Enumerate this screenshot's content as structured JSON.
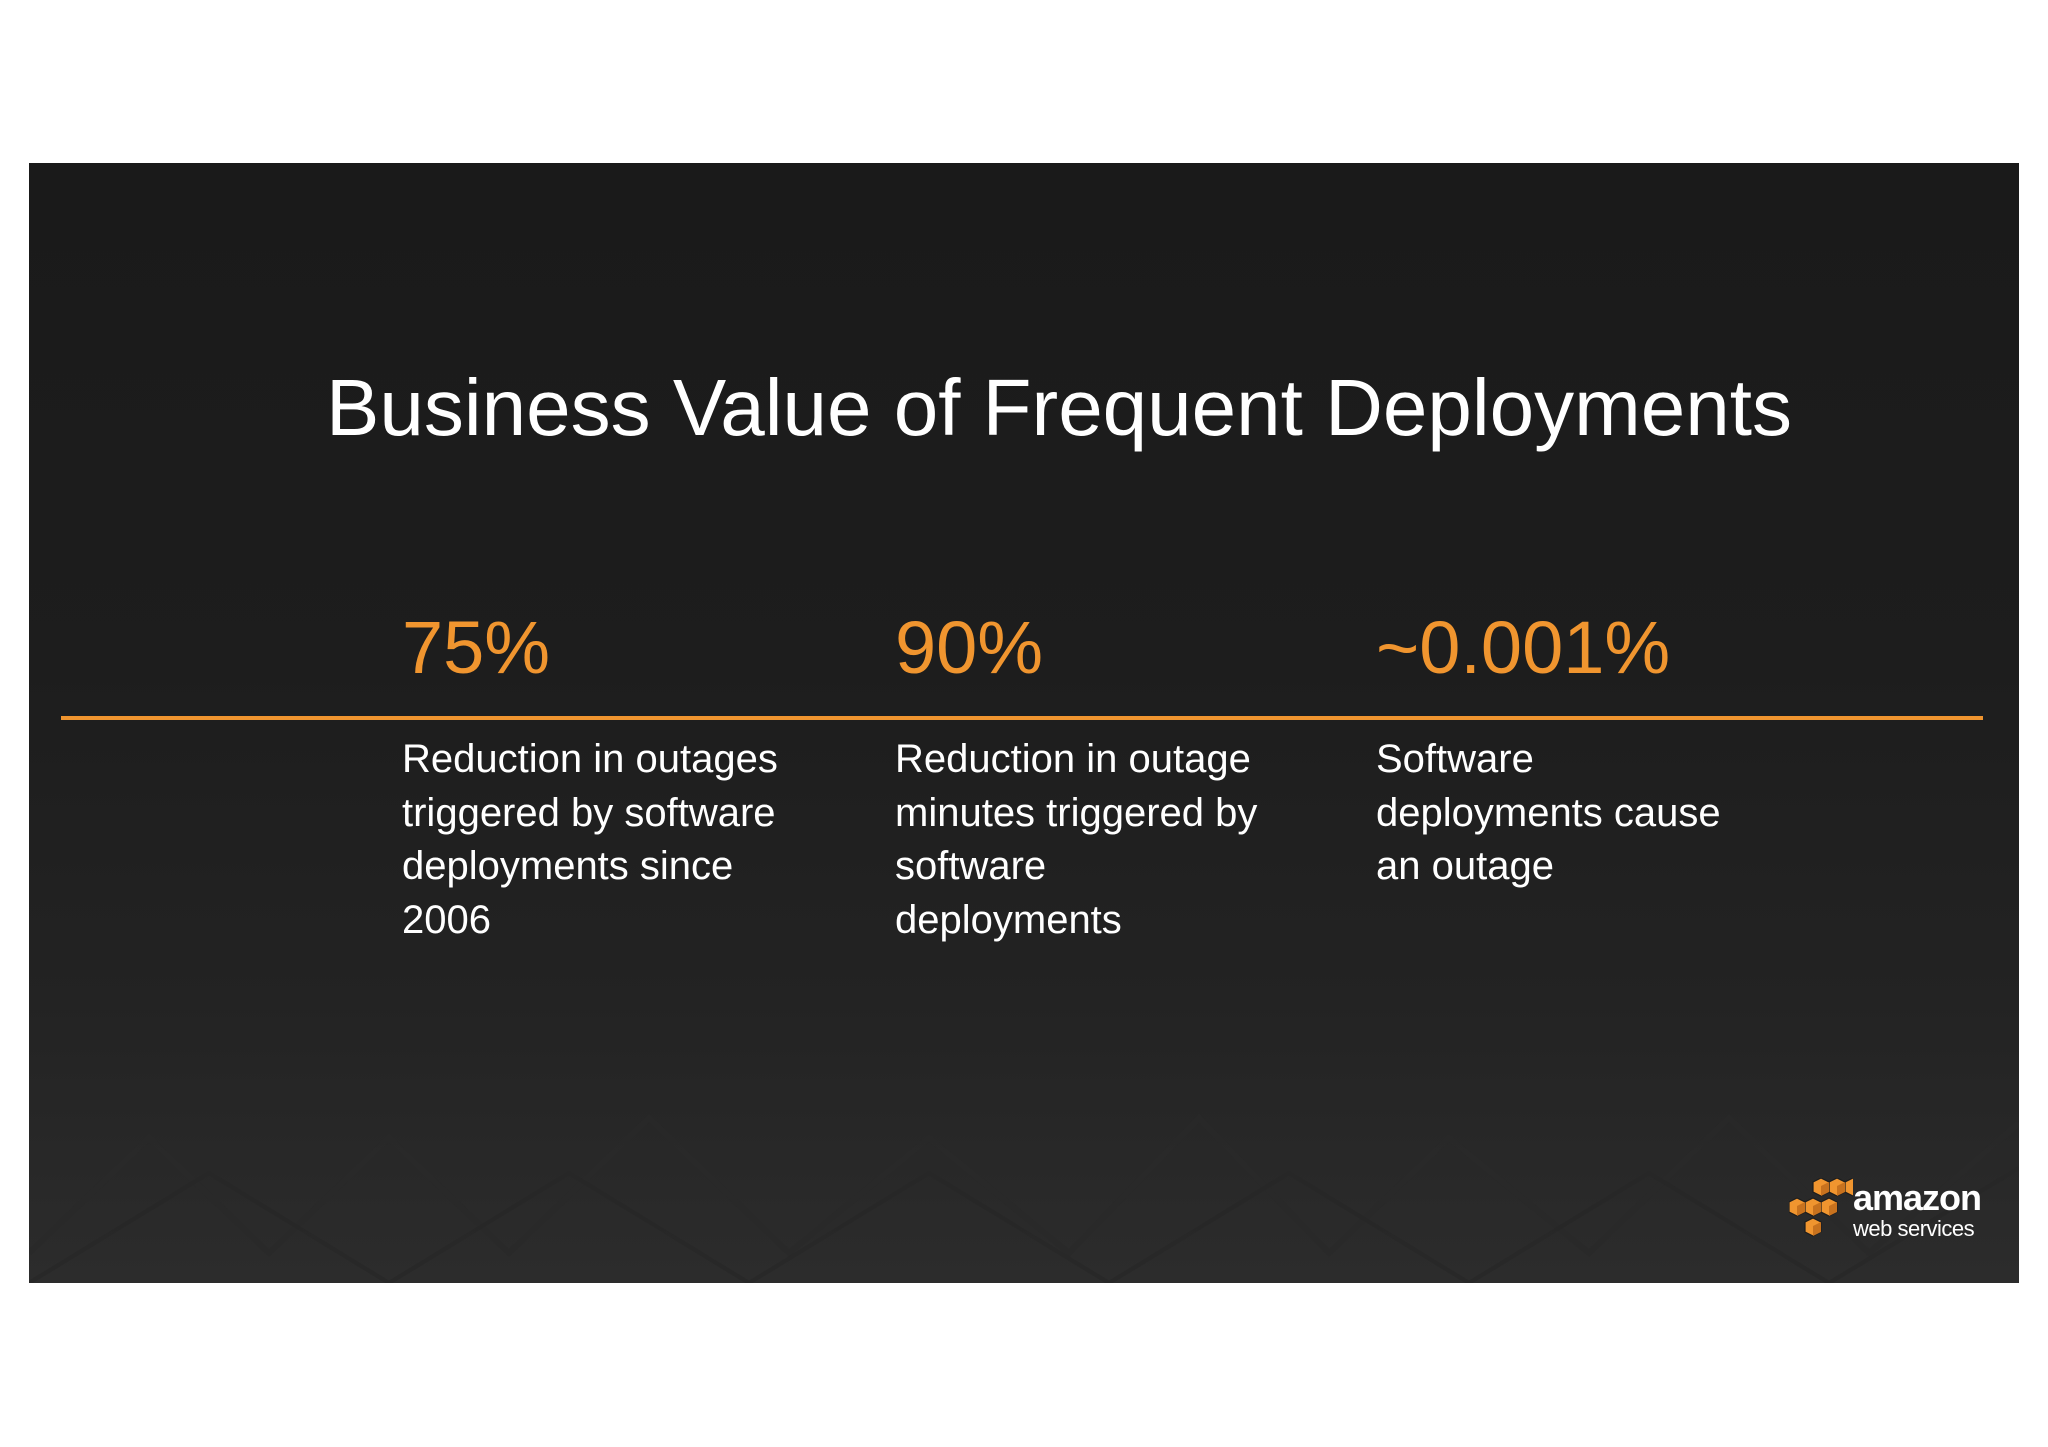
{
  "slide": {
    "title": "Business Value of Frequent Deployments",
    "accent_color": "#f0952f",
    "background_color": "#1c1c1c",
    "stats": [
      {
        "value": "75%",
        "description": "Reduction in outages triggered by software deployments since 2006"
      },
      {
        "value": "90%",
        "description": "Reduction in outage minutes triggered by software deployments"
      },
      {
        "value": "~0.001%",
        "description": "Software deployments cause an outage"
      }
    ],
    "logo": {
      "word": "amazon",
      "sub": "web services",
      "icon": "aws-cubes-logo-icon"
    }
  }
}
